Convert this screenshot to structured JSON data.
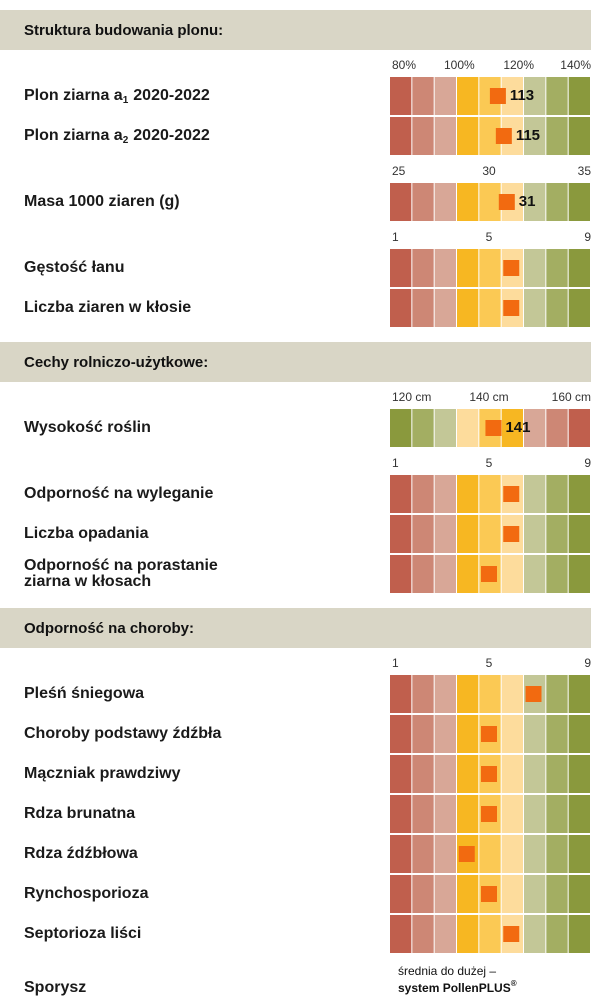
{
  "colors": [
    "#c05f4d",
    "#cd8775",
    "#d8a797",
    "#f7b722",
    "#fbc954",
    "#fddc9c",
    "#c3c797",
    "#a3ae62",
    "#8a993d"
  ],
  "sections": [
    {
      "title": "Struktura budowania plonu:",
      "groups": [
        {
          "ticks": [
            {
              "value": 80,
              "label": "80%"
            },
            {
              "value": 100,
              "label": "100%"
            },
            {
              "value": 120,
              "label": "120%"
            },
            {
              "value": 140,
              "label": "140%"
            }
          ],
          "show_value": true,
          "rows": [
            {
              "label": "Plon ziarna a",
              "subscript": "1",
              "years": "2020-2022",
              "value": 113
            },
            {
              "label": "Plon ziarna a",
              "subscript": "2",
              "years": "2020-2022",
              "value": 115
            }
          ]
        },
        {
          "ticks": [
            25,
            30,
            35
          ],
          "show_value": true,
          "rows": [
            {
              "label": "Masa 1000 ziaren (g)",
              "value": 31
            }
          ]
        },
        {
          "ticks": [
            1,
            5,
            9
          ],
          "rows": [
            {
              "label": "Gęstość łanu",
              "value": 6
            },
            {
              "label": "Liczba ziaren w kłosie",
              "value": 6
            }
          ]
        }
      ]
    },
    {
      "title": "Cechy rolniczo-użytkowe:",
      "groups": [
        {
          "ticks": [
            {
              "value": 120,
              "label": "120 cm"
            },
            {
              "value": 140,
              "label": "140 cm"
            },
            {
              "value": 160,
              "label": "160 cm"
            }
          ],
          "show_value": true,
          "reversed": true,
          "rows": [
            {
              "label": "Wysokość roślin",
              "value": 141
            }
          ]
        },
        {
          "ticks": [
            1,
            5,
            9
          ],
          "rows": [
            {
              "label": "Odporność na wyleganie",
              "value": 6
            },
            {
              "label": "Liczba opadania",
              "value": 6
            },
            {
              "label": "Odporność na porastanie",
              "label2": "ziarna w kłosach",
              "value": 5
            }
          ]
        }
      ]
    },
    {
      "title": "Odporność na choroby:",
      "groups": [
        {
          "ticks": [
            1,
            5,
            9
          ],
          "rows": [
            {
              "label": "Pleśń śniegowa",
              "value": 7
            },
            {
              "label": "Choroby podstawy źdźbła",
              "value": 5
            },
            {
              "label": "Mączniak prawdziwy",
              "value": 5
            },
            {
              "label": "Rdza brunatna",
              "value": 5
            },
            {
              "label": "Rdza źdźbłowa",
              "value": 4
            },
            {
              "label": "Rynchosporioza",
              "value": 5
            },
            {
              "label": "Septorioza liści",
              "value": 6
            },
            {
              "label": "Sporysz",
              "note": {
                "line1": "średnia do dużej –",
                "line2": "system PollenPLUS",
                "mark": "®"
              }
            }
          ]
        }
      ]
    }
  ]
}
